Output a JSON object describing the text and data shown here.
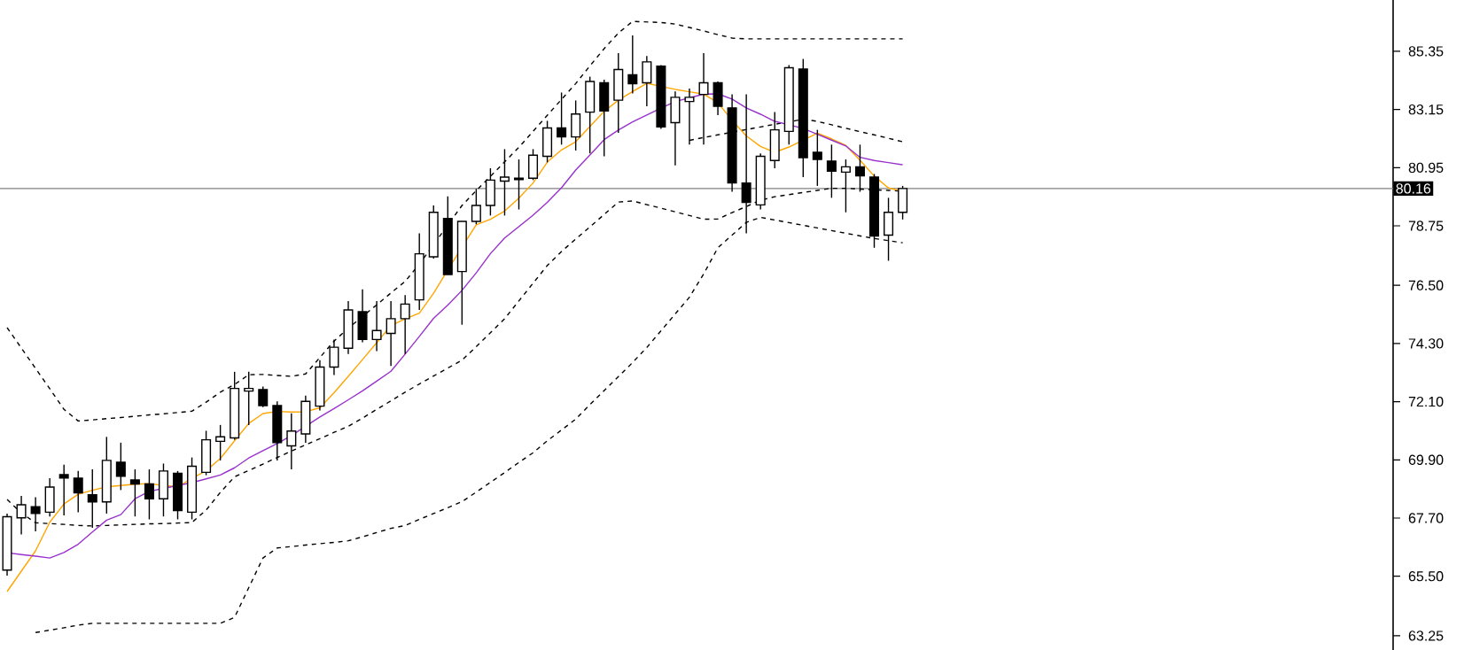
{
  "chart_data": {
    "type": "candlestick",
    "categories": [
      null,
      null,
      null,
      null,
      null,
      null,
      null,
      null,
      null,
      null,
      null,
      null,
      null,
      null,
      null,
      null,
      null,
      null,
      null,
      null,
      null,
      null,
      null,
      null,
      null,
      null,
      null,
      null,
      null,
      null,
      null,
      null,
      null,
      null,
      null,
      null,
      null,
      null,
      null,
      null,
      null,
      null,
      null,
      null,
      null,
      null,
      null,
      null,
      null,
      null,
      null,
      null,
      null,
      null,
      null,
      null,
      null,
      null,
      null,
      null,
      null,
      null,
      null,
      null,
      null,
      null,
      null,
      null,
      null,
      null,
      null,
      null,
      null,
      null,
      null,
      null,
      null,
      null,
      null,
      null,
      null,
      null,
      null,
      null,
      null,
      null,
      null,
      null,
      null,
      null,
      null,
      null,
      null,
      null,
      null,
      null,
      null,
      null
    ],
    "ohlc": [
      [
        65.73,
        67.87,
        65.52,
        67.75
      ],
      [
        67.71,
        68.54,
        67.08,
        68.2
      ],
      [
        68.13,
        68.49,
        67.2,
        67.87
      ],
      [
        67.92,
        69.21,
        67.76,
        68.87
      ],
      [
        69.34,
        69.72,
        67.8,
        69.21
      ],
      [
        69.21,
        69.48,
        67.92,
        68.65
      ],
      [
        68.58,
        69.54,
        67.33,
        68.31
      ],
      [
        68.31,
        70.77,
        67.87,
        69.88
      ],
      [
        69.81,
        70.55,
        68.76,
        69.28
      ],
      [
        69.14,
        69.54,
        67.76,
        68.99
      ],
      [
        68.99,
        69.54,
        67.65,
        68.43
      ],
      [
        68.43,
        69.76,
        67.76,
        69.48
      ],
      [
        69.39,
        69.48,
        67.65,
        67.98
      ],
      [
        67.92,
        69.99,
        67.65,
        69.66
      ],
      [
        69.43,
        71.0,
        69.32,
        70.66
      ],
      [
        70.6,
        71.22,
        69.88,
        70.77
      ],
      [
        70.73,
        73.23,
        70.66,
        72.6
      ],
      [
        72.5,
        73.23,
        71.22,
        72.6
      ],
      [
        72.56,
        72.67,
        71.89,
        71.95
      ],
      [
        71.95,
        72.11,
        69.88,
        70.55
      ],
      [
        70.43,
        71.66,
        69.54,
        70.99
      ],
      [
        70.88,
        72.33,
        70.55,
        72.11
      ],
      [
        71.93,
        73.67,
        71.77,
        73.41
      ],
      [
        73.41,
        74.45,
        73.11,
        74.16
      ],
      [
        74.12,
        75.9,
        73.9,
        75.57
      ],
      [
        75.5,
        76.35,
        74.35,
        74.45
      ],
      [
        74.45,
        75.9,
        74.01,
        74.79
      ],
      [
        74.68,
        75.9,
        73.45,
        75.24
      ],
      [
        75.24,
        76.13,
        73.9,
        75.79
      ],
      [
        75.95,
        78.47,
        75.57,
        77.69
      ],
      [
        77.58,
        79.52,
        77.51,
        79.26
      ],
      [
        79.03,
        79.86,
        76.91,
        76.91
      ],
      [
        77.02,
        78.92,
        75.01,
        78.92
      ],
      [
        78.92,
        80.15,
        78.81,
        79.52
      ],
      [
        79.52,
        80.93,
        79.14,
        80.48
      ],
      [
        80.44,
        81.65,
        79.14,
        80.59
      ],
      [
        80.5,
        81.26,
        79.37,
        80.55
      ],
      [
        80.55,
        81.65,
        80.48,
        81.42
      ],
      [
        81.38,
        82.72,
        81.15,
        82.45
      ],
      [
        82.45,
        83.79,
        81.82,
        82.11
      ],
      [
        82.11,
        83.49,
        81.6,
        82.98
      ],
      [
        83.05,
        84.39,
        81.49,
        84.21
      ],
      [
        84.16,
        84.28,
        81.38,
        83.09
      ],
      [
        83.5,
        85.28,
        82.27,
        84.66
      ],
      [
        84.46,
        85.95,
        83.76,
        84.12
      ],
      [
        84.16,
        85.17,
        83.27,
        84.95
      ],
      [
        84.79,
        84.83,
        82.42,
        82.49
      ],
      [
        82.65,
        83.83,
        81.04,
        83.61
      ],
      [
        83.45,
        83.94,
        81.82,
        83.61
      ],
      [
        83.72,
        85.28,
        81.82,
        84.16
      ],
      [
        84.16,
        84.21,
        82.94,
        83.27
      ],
      [
        83.21,
        83.72,
        80.04,
        80.37
      ],
      [
        80.37,
        83.72,
        78.47,
        79.64
      ],
      [
        79.54,
        81.49,
        79.37,
        81.38
      ],
      [
        81.22,
        83.05,
        80.93,
        82.38
      ],
      [
        82.32,
        84.83,
        81.82,
        84.73
      ],
      [
        84.68,
        85.06,
        80.59,
        81.33
      ],
      [
        81.53,
        82.38,
        80.26,
        81.26
      ],
      [
        81.2,
        81.82,
        79.81,
        80.82
      ],
      [
        80.78,
        81.26,
        79.26,
        80.98
      ],
      [
        80.98,
        81.82,
        80.04,
        80.64
      ],
      [
        80.59,
        80.71,
        77.92,
        78.36
      ],
      [
        78.4,
        79.81,
        77.43,
        79.26
      ],
      [
        79.26,
        80.26,
        78.99,
        80.16
      ],
      null,
      null,
      null,
      null,
      null,
      null,
      null,
      null,
      null,
      null,
      null,
      null,
      null,
      null,
      null,
      null,
      null,
      null,
      null,
      null,
      null,
      null,
      null,
      null,
      null,
      null,
      null,
      null,
      null,
      null,
      null,
      null,
      null,
      null
    ],
    "series": [
      {
        "type": "line",
        "line_style": "dashed",
        "color": "#000000",
        "values": [
          74.9,
          74.13,
          73.36,
          72.59,
          71.81,
          71.37,
          71.41,
          71.46,
          71.5,
          71.55,
          71.6,
          71.64,
          71.69,
          71.74,
          72.08,
          72.46,
          72.75,
          73.12,
          73.13,
          73.09,
          73.06,
          73.15,
          73.77,
          74.39,
          74.88,
          75.32,
          75.76,
          76.21,
          76.65,
          77.3,
          78.04,
          78.78,
          79.52,
          80.08,
          80.62,
          81.17,
          81.72,
          82.32,
          82.93,
          83.53,
          84.13,
          84.8,
          85.45,
          86.04,
          86.48,
          86.46,
          86.44,
          86.38,
          86.25,
          86.12,
          85.98,
          85.85,
          85.82,
          85.82,
          85.82,
          85.82,
          85.82,
          85.82,
          85.82,
          85.82,
          85.82,
          85.82,
          85.82,
          85.82,
          null,
          null,
          null,
          null,
          null,
          null,
          null,
          null,
          null,
          null,
          null,
          null,
          null,
          null,
          null,
          null,
          null,
          null,
          null,
          null,
          null,
          null,
          null,
          null,
          null,
          null,
          null,
          null,
          null,
          null,
          null,
          null,
          null,
          null
        ]
      },
      {
        "type": "line",
        "line_style": "dashed",
        "color": "#000000",
        "values": [
          null,
          null,
          null,
          null,
          null,
          null,
          null,
          null,
          null,
          null,
          null,
          null,
          null,
          null,
          null,
          null,
          null,
          null,
          null,
          null,
          null,
          null,
          null,
          null,
          null,
          null,
          null,
          null,
          null,
          null,
          null,
          null,
          null,
          null,
          null,
          null,
          null,
          null,
          null,
          null,
          null,
          null,
          null,
          null,
          null,
          null,
          null,
          null,
          81.98,
          82.09,
          82.19,
          82.29,
          82.39,
          82.49,
          82.59,
          82.68,
          82.78,
          82.7,
          82.57,
          82.44,
          82.31,
          82.19,
          82.06,
          81.93,
          null,
          null,
          null,
          null,
          null,
          null,
          null,
          null,
          null,
          null,
          null,
          null,
          null,
          null,
          null,
          null,
          null,
          null,
          null,
          null,
          null,
          null,
          null,
          null,
          null,
          null,
          null,
          null,
          null,
          null,
          null,
          null,
          null,
          null
        ]
      },
      {
        "type": "line",
        "line_style": "dashed",
        "color": "#000000",
        "values": [
          68.4,
          67.89,
          67.52,
          67.49,
          67.46,
          67.42,
          67.4,
          67.42,
          67.44,
          67.46,
          67.48,
          67.49,
          67.51,
          67.53,
          68.0,
          68.67,
          69.26,
          69.5,
          69.74,
          69.99,
          70.23,
          70.47,
          70.7,
          70.94,
          71.17,
          71.48,
          71.81,
          72.13,
          72.46,
          72.77,
          73.07,
          73.37,
          73.67,
          74.18,
          74.71,
          75.24,
          75.91,
          76.58,
          77.25,
          77.78,
          78.25,
          78.71,
          79.18,
          79.65,
          79.69,
          79.55,
          79.42,
          79.28,
          79.14,
          79.0,
          79.01,
          79.25,
          79.48,
          79.72,
          79.85,
          79.93,
          80.01,
          80.09,
          80.17,
          80.17,
          80.14,
          80.11,
          80.09,
          80.06,
          null,
          null,
          null,
          null,
          null,
          null,
          null,
          null,
          null,
          null,
          null,
          null,
          null,
          null,
          null,
          null,
          null,
          null,
          null,
          null,
          null,
          null,
          null,
          null,
          null,
          null,
          null,
          null,
          null,
          null,
          null,
          null,
          null,
          null
        ]
      },
      {
        "type": "line",
        "line_style": "dashed",
        "color": "#000000",
        "values": [
          null,
          null,
          63.37,
          63.46,
          63.55,
          63.65,
          63.72,
          63.72,
          63.72,
          63.72,
          63.72,
          63.72,
          63.72,
          63.72,
          63.72,
          63.72,
          63.94,
          65.07,
          66.19,
          66.57,
          66.62,
          66.68,
          66.73,
          66.78,
          66.84,
          66.99,
          67.15,
          67.31,
          67.42,
          67.65,
          67.87,
          68.09,
          68.32,
          68.68,
          69.05,
          69.42,
          69.8,
          70.17,
          70.62,
          71.03,
          71.44,
          71.99,
          72.52,
          73.05,
          73.58,
          74.15,
          74.78,
          75.42,
          76.05,
          76.93,
          77.92,
          78.4,
          78.88,
          79.07,
          78.97,
          78.87,
          78.77,
          78.67,
          78.57,
          78.47,
          78.37,
          78.27,
          78.19,
          78.11,
          null,
          null,
          null,
          null,
          null,
          null,
          null,
          null,
          null,
          null,
          null,
          null,
          null,
          null,
          null,
          null,
          null,
          null,
          null,
          null,
          null,
          null,
          null,
          null,
          null,
          null,
          null,
          null,
          null,
          null,
          null,
          null,
          null,
          null
        ]
      },
      {
        "type": "line",
        "line_style": "solid",
        "color": "#ffa500",
        "values": [
          64.92,
          65.69,
          66.46,
          67.54,
          68.23,
          68.6,
          68.75,
          68.88,
          68.93,
          68.98,
          69.0,
          68.93,
          68.88,
          69.2,
          69.49,
          69.95,
          70.62,
          71.28,
          71.65,
          71.73,
          71.71,
          71.72,
          71.87,
          72.44,
          73.06,
          73.69,
          74.33,
          74.98,
          75.23,
          75.45,
          76.2,
          77.08,
          77.94,
          78.79,
          79.0,
          79.31,
          79.8,
          80.37,
          81.16,
          81.62,
          81.93,
          82.51,
          83.08,
          83.5,
          83.83,
          84.14,
          84.02,
          83.91,
          83.82,
          83.73,
          83.41,
          82.74,
          82.15,
          81.75,
          81.53,
          81.73,
          81.99,
          82.25,
          82.04,
          81.79,
          81.23,
          80.63,
          80.18,
          80.06,
          null,
          null,
          null,
          null,
          null,
          null,
          null,
          null,
          null,
          null,
          null,
          null,
          null,
          null,
          null,
          null,
          null,
          null,
          null,
          null,
          null,
          null,
          null,
          null,
          null,
          null,
          null,
          null,
          null,
          null,
          null,
          null,
          null,
          null
        ]
      },
      {
        "type": "line",
        "line_style": "solid",
        "color": "#9932cc",
        "values": [
          66.39,
          66.32,
          66.26,
          66.19,
          66.4,
          66.71,
          67.17,
          67.62,
          67.83,
          68.43,
          68.71,
          68.82,
          68.93,
          69.04,
          69.18,
          69.33,
          69.6,
          69.97,
          70.25,
          70.52,
          70.82,
          71.17,
          71.52,
          71.84,
          72.17,
          72.51,
          72.88,
          73.25,
          73.9,
          74.57,
          75.25,
          75.75,
          76.31,
          76.97,
          77.7,
          78.29,
          78.72,
          79.15,
          79.64,
          80.19,
          80.86,
          81.43,
          82.01,
          82.37,
          82.68,
          82.94,
          83.2,
          83.45,
          83.59,
          83.73,
          83.74,
          83.54,
          83.21,
          82.97,
          82.7,
          82.57,
          82.43,
          82.21,
          81.99,
          81.77,
          81.34,
          81.22,
          81.14,
          81.06,
          null,
          null,
          null,
          null,
          null,
          null,
          null,
          null,
          null,
          null,
          null,
          null,
          null,
          null,
          null,
          null,
          null,
          null,
          null,
          null,
          null,
          null,
          null,
          null,
          null,
          null,
          null,
          null,
          null,
          null,
          null,
          null,
          null,
          null
        ]
      }
    ],
    "ylim": [
      62.71,
      87.29
    ],
    "yticks": [
      63.25,
      {
        "value": 65.5,
        "label": "65.50"
      },
      {
        "value": 67.7,
        "label": "67.70"
      },
      {
        "value": 69.9,
        "label": "69.90"
      },
      {
        "value": 72.1,
        "label": "72.10"
      },
      {
        "value": 74.3,
        "label": "74.30"
      },
      {
        "value": 76.5,
        "label": "76.50"
      },
      78.75,
      80.95,
      83.15,
      85.35
    ],
    "tick_labels": "y",
    "ref_lines": [
      {
        "axis": "y",
        "value": 80.16,
        "label": "80.16",
        "color": "#808080"
      }
    ]
  }
}
